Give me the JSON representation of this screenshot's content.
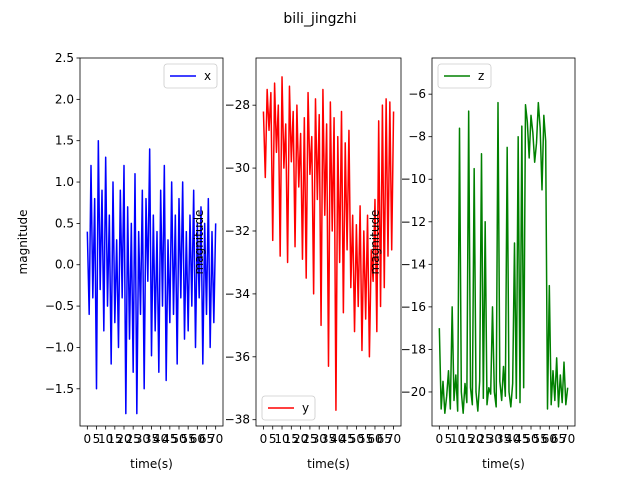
{
  "figure": {
    "title": "bili_jingzhi"
  },
  "chart_data": [
    {
      "type": "line",
      "title": "",
      "xlabel": "time(s)",
      "ylabel": "magnitude",
      "xlim": [
        -4,
        74
      ],
      "ylim": [
        -1.95,
        2.5
      ],
      "xticks": [
        0,
        5,
        10,
        15,
        20,
        25,
        30,
        35,
        40,
        45,
        50,
        55,
        60,
        65,
        70
      ],
      "xtick_labels": [
        "0",
        "5",
        "10",
        "15",
        "20",
        "25",
        "30",
        "35",
        "40",
        "45",
        "50",
        "55",
        "60",
        "65",
        "70"
      ],
      "yticks": [
        -1.5,
        -1.0,
        -0.5,
        0.0,
        0.5,
        1.0,
        1.5,
        2.0,
        2.5
      ],
      "ytick_labels": [
        "−1.5",
        "−1.0",
        "−0.5",
        "0.0",
        "0.5",
        "1.0",
        "1.5",
        "2.0",
        "2.5"
      ],
      "legend": {
        "position": "top-right"
      },
      "series": [
        {
          "name": "x",
          "color": "#0000ff",
          "x": [
            0,
            1,
            2,
            3,
            4,
            5,
            6,
            7,
            8,
            9,
            10,
            11,
            12,
            13,
            14,
            15,
            16,
            17,
            18,
            19,
            20,
            21,
            22,
            23,
            24,
            25,
            26,
            27,
            28,
            29,
            30,
            31,
            32,
            33,
            34,
            35,
            36,
            37,
            38,
            39,
            40,
            41,
            42,
            43,
            44,
            45,
            46,
            47,
            48,
            49,
            50,
            51,
            52,
            53,
            54,
            55,
            56,
            57,
            58,
            59,
            60,
            61,
            62,
            63,
            64,
            65,
            66,
            67,
            68,
            69,
            70
          ],
          "y": [
            0.4,
            -0.6,
            1.2,
            -0.4,
            0.8,
            -1.5,
            1.5,
            -0.3,
            0.9,
            -0.8,
            1.3,
            -0.5,
            0.6,
            -1.2,
            1.0,
            -0.7,
            0.3,
            -1.0,
            0.9,
            -0.4,
            1.2,
            -1.8,
            0.7,
            -0.9,
            0.5,
            -1.3,
            1.1,
            -1.8,
            0.4,
            -0.6,
            0.9,
            -1.5,
            0.8,
            -0.2,
            1.4,
            -1.1,
            0.6,
            -0.8,
            0.4,
            -1.3,
            0.9,
            -0.5,
            1.2,
            -1.4,
            0.3,
            -0.7,
            1.0,
            -0.6,
            0.6,
            -1.2,
            0.8,
            -0.4,
            1.0,
            -0.9,
            0.4,
            -0.8,
            0.6,
            -0.5,
            0.9,
            -1.0,
            0.5,
            -0.4,
            0.7,
            -1.2,
            0.5,
            -0.6,
            0.8,
            -1.0,
            0.4,
            -0.7,
            0.5
          ]
        }
      ]
    },
    {
      "type": "line",
      "title": "",
      "xlabel": "time(s)",
      "ylabel": "magnitude",
      "xlim": [
        -4,
        74
      ],
      "ylim": [
        -38.2,
        -26.5
      ],
      "xticks": [
        0,
        5,
        10,
        15,
        20,
        25,
        30,
        35,
        40,
        45,
        50,
        55,
        60,
        65,
        70
      ],
      "xtick_labels": [
        "0",
        "5",
        "10",
        "15",
        "20",
        "25",
        "30",
        "35",
        "40",
        "45",
        "50",
        "55",
        "60",
        "65",
        "70"
      ],
      "yticks": [
        -38,
        -36,
        -34,
        -32,
        -30,
        -28
      ],
      "ytick_labels": [
        "−38",
        "−36",
        "−34",
        "−32",
        "−30",
        "−28"
      ],
      "legend": {
        "position": "bottom-left"
      },
      "series": [
        {
          "name": "y",
          "color": "#ff0000",
          "x": [
            0,
            1,
            2,
            3,
            4,
            5,
            6,
            7,
            8,
            9,
            10,
            11,
            12,
            13,
            14,
            15,
            16,
            17,
            18,
            19,
            20,
            21,
            22,
            23,
            24,
            25,
            26,
            27,
            28,
            29,
            30,
            31,
            32,
            33,
            34,
            35,
            36,
            37,
            38,
            39,
            40,
            41,
            42,
            43,
            44,
            45,
            46,
            47,
            48,
            49,
            50,
            51,
            52,
            53,
            54,
            55,
            56,
            57,
            58,
            59,
            60,
            61,
            62,
            63,
            64,
            65,
            66,
            67,
            68,
            69,
            70
          ],
          "y": [
            -28.2,
            -30.3,
            -27.5,
            -28.8,
            -27.6,
            -32.3,
            -27.3,
            -29.5,
            -28.0,
            -32.8,
            -27.1,
            -30.0,
            -28.6,
            -33.0,
            -27.4,
            -29.8,
            -28.2,
            -32.5,
            -28.0,
            -30.6,
            -28.9,
            -32.9,
            -28.4,
            -33.5,
            -27.6,
            -30.2,
            -29.0,
            -34.0,
            -27.8,
            -31.0,
            -28.3,
            -35.0,
            -27.5,
            -31.5,
            -28.6,
            -36.3,
            -27.9,
            -32.0,
            -28.4,
            -37.7,
            -29.0,
            -33.0,
            -28.2,
            -34.6,
            -29.2,
            -32.6,
            -28.8,
            -33.8,
            -31.5,
            -35.2,
            -31.8,
            -34.4,
            -31.2,
            -35.8,
            -32.0,
            -34.8,
            -31.5,
            -36.0,
            -32.6,
            -33.6,
            -31.0,
            -35.2,
            -28.5,
            -34.4,
            -28.0,
            -33.8,
            -27.8,
            -32.8,
            -27.9,
            -32.6,
            -28.2
          ]
        }
      ]
    },
    {
      "type": "line",
      "title": "",
      "xlabel": "time(s)",
      "ylabel": "magnitude",
      "xlim": [
        -4,
        74
      ],
      "ylim": [
        -21.6,
        -4.3
      ],
      "xticks": [
        0,
        5,
        10,
        15,
        20,
        25,
        30,
        35,
        40,
        45,
        50,
        55,
        60,
        65,
        70
      ],
      "xtick_labels": [
        "0",
        "5",
        "10",
        "15",
        "20",
        "25",
        "30",
        "35",
        "40",
        "45",
        "50",
        "55",
        "60",
        "65",
        "70"
      ],
      "yticks": [
        -20,
        -18,
        -16,
        -14,
        -12,
        -10,
        -8,
        -6
      ],
      "ytick_labels": [
        "−20",
        "−18",
        "−16",
        "−14",
        "−12",
        "−10",
        "−8",
        "−6"
      ],
      "legend": {
        "position": "top-left"
      },
      "series": [
        {
          "name": "z",
          "color": "#008000",
          "x": [
            0,
            1,
            2,
            3,
            4,
            5,
            6,
            7,
            8,
            9,
            10,
            11,
            12,
            13,
            14,
            15,
            16,
            17,
            18,
            19,
            20,
            21,
            22,
            23,
            24,
            25,
            26,
            27,
            28,
            29,
            30,
            31,
            32,
            33,
            34,
            35,
            36,
            37,
            38,
            39,
            40,
            41,
            42,
            43,
            44,
            45,
            46,
            47,
            48,
            49,
            50,
            51,
            52,
            53,
            54,
            55,
            56,
            57,
            58,
            59,
            60,
            61,
            62,
            63,
            64,
            65,
            66,
            67,
            68,
            69,
            70
          ],
          "y": [
            -17.0,
            -20.8,
            -19.5,
            -21.0,
            -20.2,
            -19.0,
            -20.8,
            -16.0,
            -20.4,
            -19.2,
            -20.9,
            -7.6,
            -20.0,
            -21.0,
            -19.6,
            -20.5,
            -6.8,
            -19.8,
            -20.6,
            -9.5,
            -20.0,
            -20.9,
            -19.5,
            -8.8,
            -20.3,
            -12.0,
            -20.6,
            -19.8,
            -20.1,
            -16.0,
            -20.0,
            -20.7,
            -6.4,
            -19.5,
            -20.4,
            -18.8,
            -20.2,
            -8.5,
            -20.0,
            -20.7,
            -19.6,
            -13.0,
            -20.3,
            -8.0,
            -20.5,
            -7.5,
            -19.8,
            -6.5,
            -7.3,
            -9.0,
            -7.0,
            -7.8,
            -9.2,
            -8.3,
            -6.4,
            -7.6,
            -10.5,
            -7.0,
            -8.2,
            -20.8,
            -15.0,
            -20.6,
            -19.0,
            -20.4,
            -18.4,
            -20.7,
            -19.2,
            -20.5,
            -18.6,
            -20.6,
            -19.8
          ]
        }
      ]
    }
  ]
}
